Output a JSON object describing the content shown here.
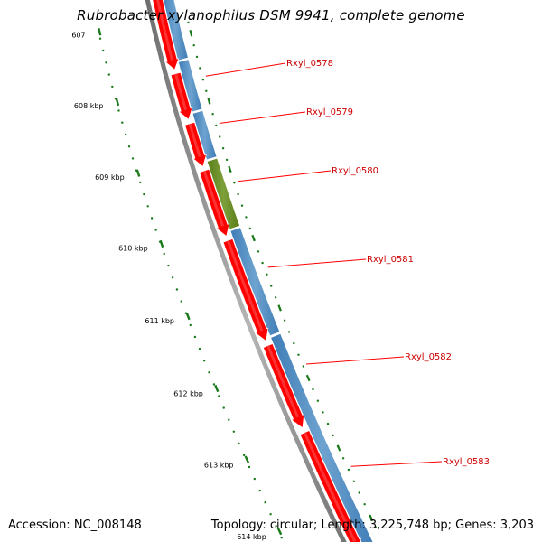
{
  "title": "Rubrobacter xylanophilus DSM 9941, complete genome",
  "footer": {
    "accession": "Accession: NC_008148",
    "summary": "Topology: circular; Length: 3,225,748 bp; Genes: 3,203"
  },
  "colors": {
    "backbone": "#777777",
    "forward_gene": "#ff0000",
    "reverse_gene": "#4a88c0",
    "highlight_gene": "#6b8e23",
    "tick": "#1a7a1a",
    "label_line": "#ff0000"
  },
  "scale_labels": [
    "607",
    "608 kbp",
    "609 kbp",
    "610 kbp",
    "611 kbp",
    "612 kbp",
    "613 kbp",
    "614 kbp"
  ],
  "genes": [
    {
      "name": "Rxyl_0578"
    },
    {
      "name": "Rxyl_0579"
    },
    {
      "name": "Rxyl_0580"
    },
    {
      "name": "Rxyl_0581"
    },
    {
      "name": "Rxyl_0582"
    },
    {
      "name": "Rxyl_0583"
    }
  ]
}
